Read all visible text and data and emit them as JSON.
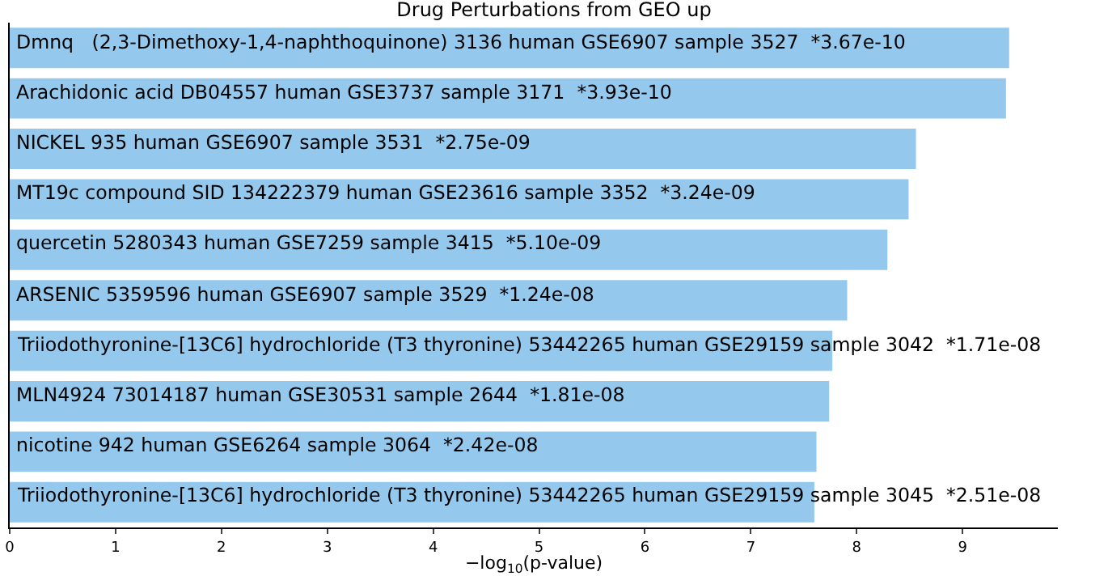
{
  "chart_data": {
    "type": "bar",
    "orientation": "horizontal",
    "title": "Drug Perturbations from GEO up",
    "xlabel": "−log$_{10}$(p-value)",
    "categories": [
      "Dmnq   (2,3-Dimethoxy-1,4-naphthoquinone) 3136 human GSE6907 sample 3527  *3.67e-10",
      "Arachidonic acid DB04557 human GSE3737 sample 3171  *3.93e-10",
      "NICKEL 935 human GSE6907 sample 3531  *2.75e-09",
      "MT19c compound SID 134222379 human GSE23616 sample 3352  *3.24e-09",
      "quercetin 5280343 human GSE7259 sample 3415  *5.10e-09",
      "ARSENIC 5359596 human GSE6907 sample 3529  *1.24e-08",
      "Triiodothyronine-[13C6] hydrochloride (T3 thyronine) 53442265 human GSE29159 sample 3042  *1.71e-08",
      "MLN4924 73014187 human GSE30531 sample 2644  *1.81e-08",
      "nicotine 942 human GSE6264 sample 3064  *2.42e-08",
      "Triiodothyronine-[13C6] hydrochloride (T3 thyronine) 53442265 human GSE29159 sample 3045  *2.51e-08"
    ],
    "values": [
      9.44,
      9.41,
      8.56,
      8.49,
      8.29,
      7.91,
      7.77,
      7.74,
      7.62,
      7.6
    ],
    "color": "#94c9ed",
    "xlim": [
      0,
      9.9
    ],
    "xticks": [
      0,
      1,
      2,
      3,
      4,
      5,
      6,
      7,
      8,
      9
    ],
    "tick_labels": "x"
  }
}
